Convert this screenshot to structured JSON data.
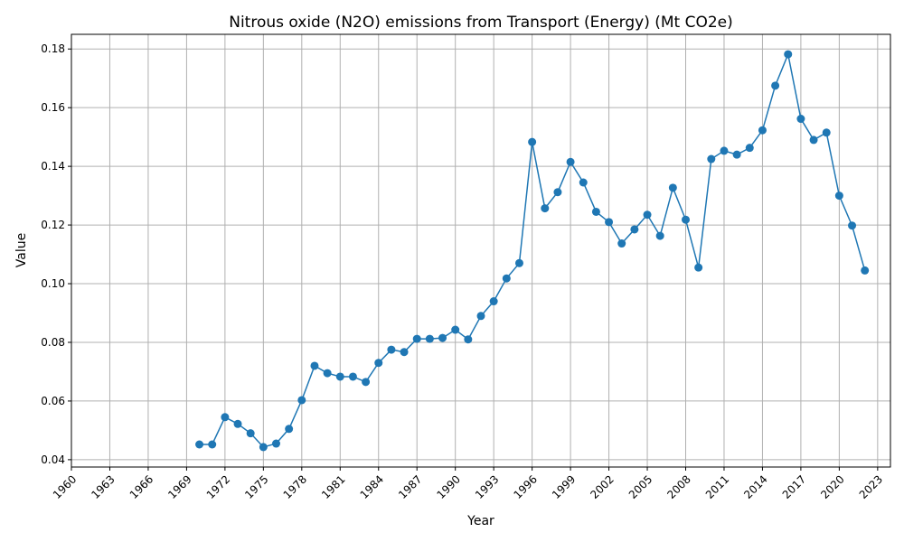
{
  "chart_data": {
    "type": "line",
    "title": "Nitrous oxide (N2O) emissions from Transport (Energy) (Mt CO2e)",
    "xlabel": "Year",
    "ylabel": "Value",
    "xlim": [
      1960,
      2024
    ],
    "ylim": [
      0.0375,
      0.185
    ],
    "x_ticks": [
      1960,
      1963,
      1966,
      1969,
      1972,
      1975,
      1978,
      1981,
      1984,
      1987,
      1990,
      1993,
      1996,
      1999,
      2002,
      2005,
      2008,
      2011,
      2014,
      2017,
      2020,
      2023
    ],
    "x_tick_labels": [
      "1960",
      "1963",
      "1966",
      "1969",
      "1972",
      "1975",
      "1978",
      "1981",
      "1984",
      "1987",
      "1990",
      "1993",
      "1996",
      "1999",
      "2002",
      "2005",
      "2008",
      "2011",
      "2014",
      "2017",
      "2020",
      "2023"
    ],
    "y_ticks": [
      0.04,
      0.06,
      0.08,
      0.1,
      0.12,
      0.14,
      0.16,
      0.18
    ],
    "y_tick_labels": [
      "0.04",
      "0.06",
      "0.08",
      "0.10",
      "0.12",
      "0.14",
      "0.16",
      "0.18"
    ],
    "grid": true,
    "color": "#1f77b4",
    "series": [
      {
        "x": [
          1970,
          1971,
          1972,
          1973,
          1974,
          1975,
          1976,
          1977,
          1978,
          1979,
          1980,
          1981,
          1982,
          1983,
          1984,
          1985,
          1986,
          1987,
          1988,
          1989,
          1990,
          1991,
          1992,
          1993,
          1994,
          1995,
          1996,
          1997,
          1998,
          1999,
          2000,
          2001,
          2002,
          2003,
          2004,
          2005,
          2006,
          2007,
          2008,
          2009,
          2010,
          2011,
          2012,
          2013,
          2014,
          2015,
          2016,
          2017,
          2018,
          2019,
          2020,
          2021,
          2022
        ],
        "values": [
          0.0452,
          0.0452,
          0.0545,
          0.0522,
          0.049,
          0.0443,
          0.0455,
          0.0505,
          0.0603,
          0.072,
          0.0695,
          0.0683,
          0.0683,
          0.0665,
          0.073,
          0.0775,
          0.0767,
          0.0812,
          0.0812,
          0.0815,
          0.0843,
          0.081,
          0.089,
          0.094,
          0.1018,
          0.107,
          0.1483,
          0.1257,
          0.1312,
          0.1415,
          0.1345,
          0.1245,
          0.121,
          0.1137,
          0.1185,
          0.1235,
          0.1163,
          0.1327,
          0.1218,
          0.1055,
          0.1425,
          0.1453,
          0.144,
          0.1463,
          0.1523,
          0.1675,
          0.1782,
          0.1562,
          0.149,
          0.1515,
          0.13,
          0.1198,
          0.1045
        ]
      }
    ]
  }
}
